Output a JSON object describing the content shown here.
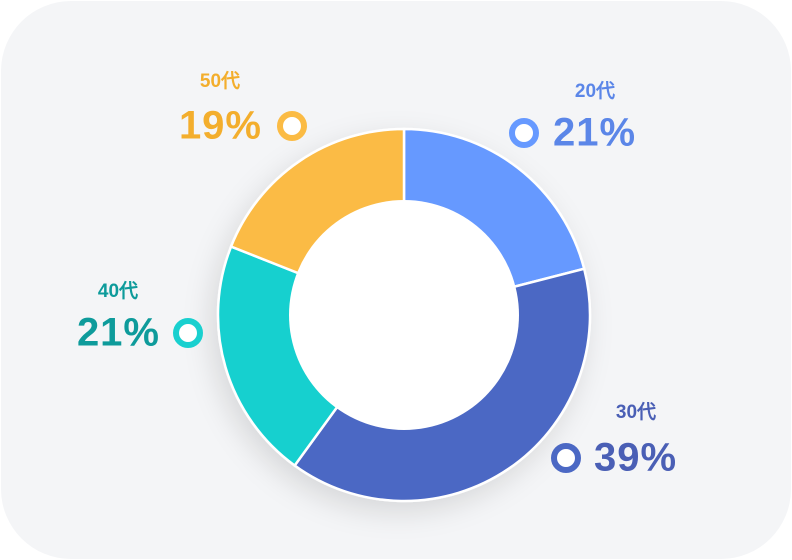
{
  "chart_data": {
    "type": "donut",
    "categories": [
      "20代",
      "30代",
      "40代",
      "50代"
    ],
    "values": [
      21,
      39,
      21,
      19
    ],
    "value_labels": [
      "21%",
      "39%",
      "21%",
      "19%"
    ],
    "colors": [
      "#6699ff",
      "#4b68c4",
      "#19d0cf",
      "#fbbb44"
    ],
    "label_colors": [
      "#5b86e8",
      "#4a5fb5",
      "#0e9b9b",
      "#f3ae2d"
    ]
  }
}
